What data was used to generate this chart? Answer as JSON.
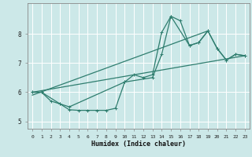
{
  "title": "",
  "xlabel": "Humidex (Indice chaleur)",
  "background_color": "#cce8e8",
  "grid_color": "#ffffff",
  "line_color": "#2e7d6e",
  "xlim": [
    -0.5,
    23.5
  ],
  "ylim": [
    4.75,
    9.05
  ],
  "xticks": [
    0,
    1,
    2,
    3,
    4,
    5,
    6,
    7,
    8,
    9,
    10,
    11,
    12,
    13,
    14,
    15,
    16,
    17,
    18,
    19,
    20,
    21,
    22,
    23
  ],
  "yticks": [
    5,
    6,
    7,
    8
  ],
  "series1_x": [
    0,
    1,
    2,
    3,
    4,
    5,
    6,
    7,
    8,
    9,
    10,
    11,
    12,
    13,
    14,
    15,
    16,
    17,
    18,
    19,
    20,
    21,
    22,
    23
  ],
  "series1_y": [
    6.0,
    6.0,
    5.7,
    5.6,
    5.4,
    5.38,
    5.38,
    5.38,
    5.38,
    5.45,
    6.35,
    6.6,
    6.5,
    6.6,
    8.05,
    8.6,
    8.45,
    7.6,
    7.7,
    8.1,
    7.5,
    7.1,
    7.3,
    7.25
  ],
  "series2_x": [
    0,
    1,
    3,
    4,
    10,
    13,
    14,
    15,
    17,
    18,
    19,
    20,
    21,
    22,
    23
  ],
  "series2_y": [
    6.0,
    6.0,
    5.6,
    5.5,
    6.35,
    6.5,
    7.3,
    8.6,
    7.6,
    7.7,
    8.1,
    7.5,
    7.1,
    7.3,
    7.25
  ],
  "line1_x": [
    0,
    23
  ],
  "line1_y": [
    6.0,
    7.25
  ],
  "line2_x": [
    0,
    19
  ],
  "line2_y": [
    5.9,
    8.1
  ]
}
